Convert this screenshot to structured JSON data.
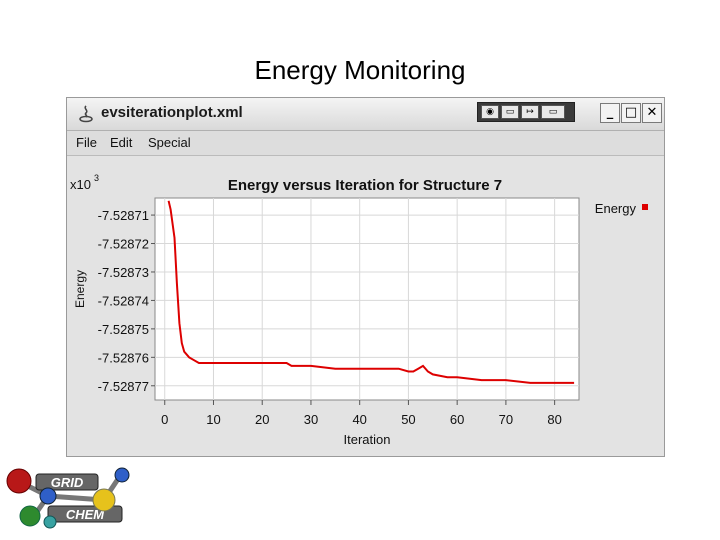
{
  "slide": {
    "title": "Energy Monitoring"
  },
  "window": {
    "title": "evsiterationplot.xml",
    "controls": {
      "minimize": "_",
      "maximize": "□",
      "close": "✕"
    }
  },
  "menu": {
    "items": [
      "File",
      "Edit",
      "Special"
    ]
  },
  "chart_data": {
    "type": "line",
    "title": "Energy versus Iteration for Structure 7",
    "xlabel": "Iteration",
    "ylabel": "Energy",
    "y_multiplier_label": "x10",
    "y_multiplier_exp": "3",
    "legend": {
      "label": "Energy",
      "placement": "top-right",
      "color": "#dd0000"
    },
    "grid": true,
    "xlim": [
      -2,
      85
    ],
    "ylim": [
      -7.528775,
      -7.528704
    ],
    "x_ticks": [
      "0",
      "10",
      "20",
      "30",
      "40",
      "50",
      "60",
      "70",
      "80"
    ],
    "x_tick_values": [
      0,
      10,
      20,
      30,
      40,
      50,
      60,
      70,
      80
    ],
    "y_ticks": [
      "-7.52871",
      "-7.52872",
      "-7.52873",
      "-7.52874",
      "-7.52875",
      "-7.52876",
      "-7.52877"
    ],
    "y_tick_values": [
      -7.52871,
      -7.52872,
      -7.52873,
      -7.52874,
      -7.52875,
      -7.52876,
      -7.52877
    ],
    "series": [
      {
        "color": "#dd0000",
        "x": [
          0.8,
          1.2,
          2,
          2.5,
          3,
          3.5,
          4,
          5,
          6,
          7,
          8,
          10,
          15,
          20,
          25,
          26,
          30,
          35,
          40,
          45,
          48,
          50,
          51,
          52,
          53,
          54,
          55,
          58,
          60,
          65,
          70,
          75,
          78,
          84
        ],
        "y": [
          -7.528705,
          -7.528708,
          -7.528718,
          -7.528734,
          -7.528748,
          -7.528755,
          -7.528758,
          -7.52876,
          -7.528761,
          -7.528762,
          -7.528762,
          -7.528762,
          -7.528762,
          -7.528762,
          -7.528762,
          -7.528763,
          -7.528763,
          -7.528764,
          -7.528764,
          -7.528764,
          -7.528764,
          -7.528765,
          -7.528765,
          -7.528764,
          -7.528763,
          -7.528765,
          -7.528766,
          -7.528767,
          -7.528767,
          -7.528768,
          -7.528768,
          -7.528769,
          -7.528769,
          -7.528769
        ]
      }
    ]
  },
  "logo": {
    "line1": "GRID",
    "line2": "CHEM"
  }
}
